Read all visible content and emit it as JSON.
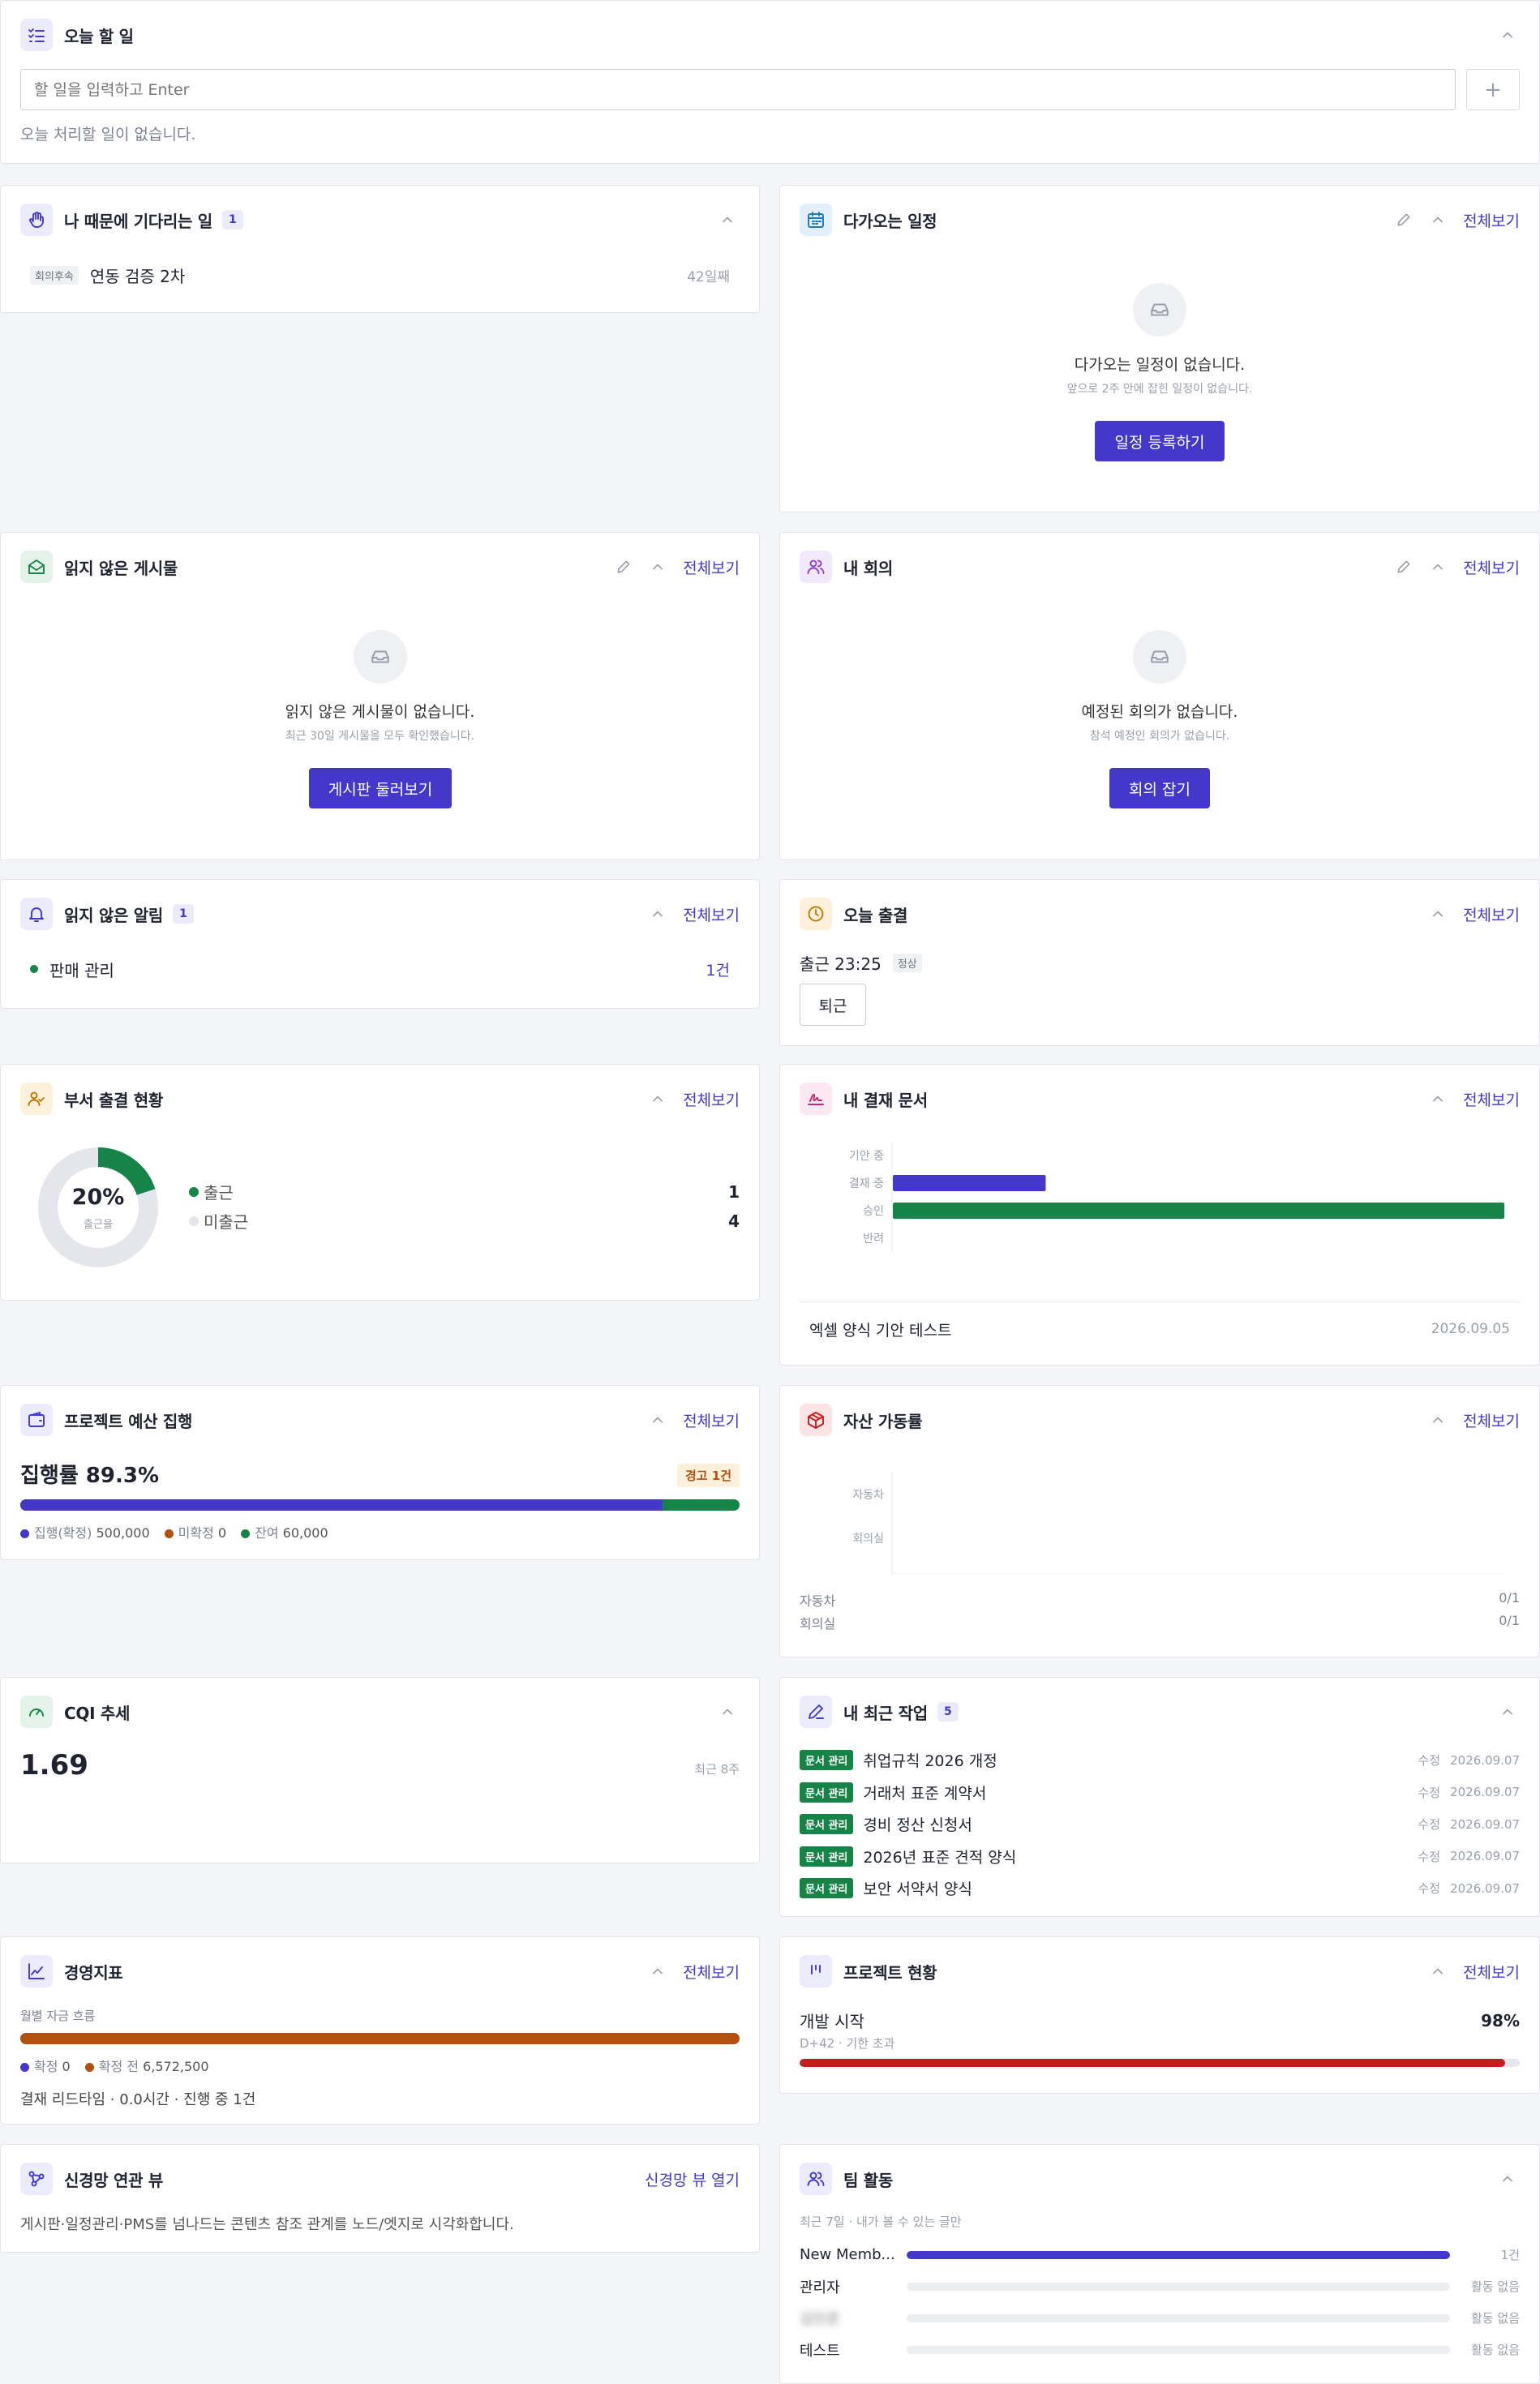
{
  "colors": {
    "accent": "#4338ca",
    "green": "#178447",
    "brown": "#b4500f",
    "red": "#c51c1c",
    "gray": "#e4e6ec"
  },
  "todo": {
    "title": "오늘 할 일",
    "placeholder": "할 일을 입력하고 Enter",
    "add": "+",
    "empty": "오늘 처리할 일이 없습니다."
  },
  "waiting": {
    "title": "나 때문에 기다리는 일",
    "count": "1",
    "items": [
      {
        "tag": "회의후속",
        "text": "연동 검증 2차",
        "age": "42일째"
      }
    ]
  },
  "schedule": {
    "title": "다가오는 일정",
    "link": "전체보기",
    "empty": "다가오는 일정이 없습니다.",
    "sub": "앞으로 2주 안에 잡힌 일정이 없습니다.",
    "button": "일정 등록하기"
  },
  "unread_posts": {
    "title": "읽지 않은 게시물",
    "link": "전체보기",
    "empty": "읽지 않은 게시물이 없습니다.",
    "sub": "최근 30일 게시물을 모두 확인했습니다.",
    "button": "게시판 둘러보기"
  },
  "meetings": {
    "title": "내 회의",
    "link": "전체보기",
    "empty": "예정된 회의가 없습니다.",
    "sub": "참석 예정인 회의가 없습니다.",
    "button": "회의 잡기"
  },
  "alerts": {
    "title": "읽지 않은 알림",
    "count": "1",
    "link": "전체보기",
    "items": [
      {
        "label": "판매 관리",
        "count": "1건"
      }
    ]
  },
  "attendance": {
    "title": "오늘 출결",
    "link": "전체보기",
    "checkin": "출근 23:25",
    "status": "정상",
    "button": "퇴근"
  },
  "dept": {
    "title": "부서 출결 현황",
    "link": "전체보기",
    "percent": "20%",
    "percent_value": 20,
    "sub": "출근율",
    "rows": [
      {
        "label": "출근",
        "value": "1",
        "color": "#178447"
      },
      {
        "label": "미출근",
        "value": "4",
        "color": "#e4e6ec"
      }
    ]
  },
  "approval": {
    "title": "내 결재 문서",
    "link": "전체보기",
    "chart_data": {
      "type": "bar",
      "orientation": "horizontal",
      "categories": [
        "기안 중",
        "결재 중",
        "승인",
        "반려"
      ],
      "values": [
        0,
        1,
        4,
        0
      ],
      "colors": [
        "#4338ca",
        "#4338ca",
        "#178447",
        "#4338ca"
      ],
      "xticks": [
        "0",
        "1",
        "2",
        "3",
        "4"
      ],
      "xlim": [
        0,
        4
      ]
    },
    "doc": {
      "name": "엑셀 양식 기안 테스트",
      "date": "2026.09.05"
    }
  },
  "budget": {
    "title": "프로젝트 예산 집행",
    "link": "전체보기",
    "rate": "집행률 89.3%",
    "badge": "경고 1건",
    "fraction": 0.893,
    "legend": [
      {
        "label": "집행(확정)",
        "value": "500,000",
        "color": "#4338ca"
      },
      {
        "label": "미확정",
        "value": "0",
        "color": "#b4500f"
      },
      {
        "label": "잔여",
        "value": "60,000",
        "color": "#178447"
      }
    ]
  },
  "assets": {
    "title": "자산 가동률",
    "link": "전체보기",
    "chart_data": {
      "type": "bar",
      "orientation": "horizontal",
      "categories": [
        "자동차",
        "회의실"
      ],
      "values": [
        0,
        0
      ],
      "xticks": [
        "0",
        "1",
        "2",
        "3",
        "4"
      ],
      "xlim": [
        0,
        4
      ]
    },
    "rows": [
      {
        "label": "자동차",
        "value": "0/1"
      },
      {
        "label": "회의실",
        "value": "0/1"
      }
    ]
  },
  "cqi": {
    "title": "CQI 추세",
    "value": "1.69",
    "period": "최근 8주"
  },
  "recent": {
    "title": "내 최근 작업",
    "count": "5",
    "items": [
      {
        "tag": "문서 관리",
        "title": "취업규칙 2026 개정",
        "action": "수정",
        "date": "2026.09.07"
      },
      {
        "tag": "문서 관리",
        "title": "거래처 표준 계약서",
        "action": "수정",
        "date": "2026.09.07"
      },
      {
        "tag": "문서 관리",
        "title": "경비 정산 신청서",
        "action": "수정",
        "date": "2026.09.07"
      },
      {
        "tag": "문서 관리",
        "title": "2026년 표준 견적 양식",
        "action": "수정",
        "date": "2026.09.07"
      },
      {
        "tag": "문서 관리",
        "title": "보안 서약서 양식",
        "action": "수정",
        "date": "2026.09.07"
      }
    ]
  },
  "mgmt": {
    "title": "경영지표",
    "link": "전체보기",
    "flow_label": "월별 자금 흐름",
    "legend": [
      {
        "label": "확정",
        "value": "0",
        "color": "#4338ca"
      },
      {
        "label": "확정 전",
        "value": "6,572,500",
        "color": "#b4500f"
      }
    ],
    "summary": "결재 리드타임 · 0.0시간 · 진행 중 1건"
  },
  "project": {
    "title": "프로젝트 현황",
    "link": "전체보기",
    "name": "개발 시작",
    "percent": "98%",
    "fraction": 0.98,
    "sub": "D+42 · 기한 초과"
  },
  "graph": {
    "title": "신경망 연관 뷰",
    "link": "신경망 뷰 열기",
    "desc": "게시판·일정관리·PMS를 넘나드는 콘텐츠 참조 관계를 노드/엣지로 시각화합니다."
  },
  "team": {
    "title": "팀 활동",
    "sub": "최근 7일 · 내가 볼 수 있는 글만",
    "rows": [
      {
        "name": "New Memb...",
        "fraction": 1,
        "value": "1건"
      },
      {
        "name": "관리자",
        "fraction": 0,
        "value": "활동 없음"
      },
      {
        "name": "김민준",
        "fraction": 0,
        "value": "활동 없음"
      },
      {
        "name": "테스트",
        "fraction": 0,
        "value": "활동 없음"
      }
    ]
  }
}
